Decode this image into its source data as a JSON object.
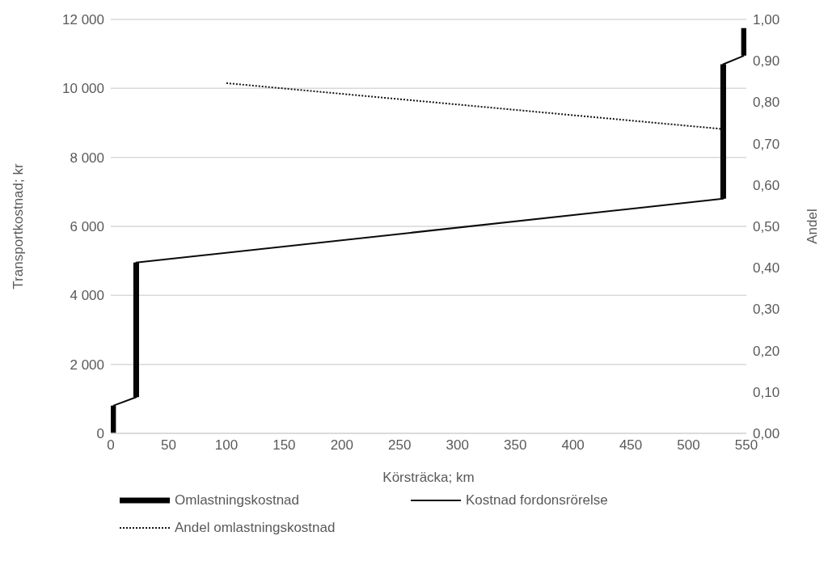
{
  "chart_data": {
    "type": "line",
    "xlabel": "Körsträcka; km",
    "ylabel": "Transportkostnad; kr",
    "y2label": "Andel",
    "xlim": [
      0,
      550
    ],
    "xticks": [
      0,
      50,
      100,
      150,
      200,
      250,
      300,
      350,
      400,
      450,
      500,
      550
    ],
    "ylim": [
      0,
      12000
    ],
    "yticks": [
      0,
      {
        "value": 2000,
        "label": "2 000"
      },
      {
        "value": 4000,
        "label": "4 000"
      },
      {
        "value": 6000,
        "label": "6 000"
      },
      {
        "value": 8000,
        "label": "8 000"
      },
      {
        "value": 10000,
        "label": "10 000"
      },
      {
        "value": 12000,
        "label": "12 000"
      }
    ],
    "y2lim": [
      0,
      1
    ],
    "y2ticks": [
      {
        "value": 0,
        "label": "0,00"
      },
      {
        "value": 0.1,
        "label": "0,10"
      },
      {
        "value": 0.2,
        "label": "0,20"
      },
      {
        "value": 0.3,
        "label": "0,30"
      },
      {
        "value": 0.4,
        "label": "0,40"
      },
      {
        "value": 0.5,
        "label": "0,50"
      },
      {
        "value": 0.6,
        "label": "0,60"
      },
      {
        "value": 0.7,
        "label": "0,70"
      },
      {
        "value": 0.8,
        "label": "0,80"
      },
      {
        "value": 0.9,
        "label": "0,90"
      },
      {
        "value": 1,
        "label": "1,00"
      }
    ],
    "grid": "y",
    "legend": "bottom",
    "marker": "none",
    "series": [
      {
        "name": "Omlastningskostnad",
        "color": "#000000",
        "line_style": "solid",
        "x": [
          2,
          2,
          null,
          22,
          22,
          null,
          530,
          530,
          null,
          548,
          548
        ],
        "values": [
          0,
          800,
          null,
          1050,
          4950,
          null,
          6800,
          10700,
          null,
          10950,
          11750
        ]
      },
      {
        "name": "Kostnad fordonsrörelse",
        "color": "#0a0a0a",
        "line_style": "solid",
        "x": [
          2,
          22,
          22,
          530,
          530,
          548
        ],
        "values": [
          800,
          1050,
          4950,
          6800,
          10700,
          10950
        ]
      },
      {
        "name": "Andel omlastningskostnad",
        "color": "#141414",
        "line_style": "dotted",
        "axis": "y2",
        "x": [
          100,
          530
        ],
        "values": [
          0.846,
          0.735
        ]
      }
    ]
  }
}
